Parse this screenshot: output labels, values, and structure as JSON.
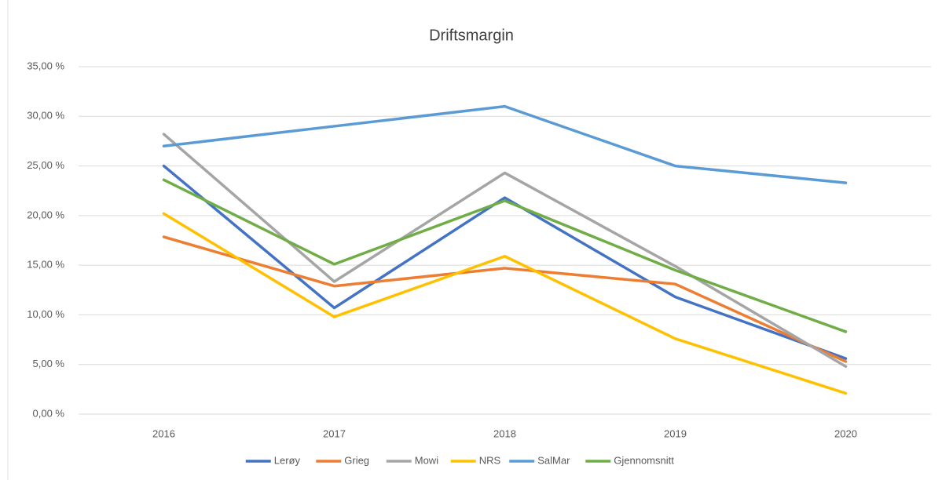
{
  "chart_data": {
    "type": "line",
    "title": "Driftsmargin",
    "categories": [
      "2016",
      "2017",
      "2018",
      "2019",
      "2020"
    ],
    "series": [
      {
        "name": "Lerøy",
        "color": "#4472c4",
        "values": [
          25.0,
          10.7,
          21.8,
          11.8,
          5.6
        ]
      },
      {
        "name": "Grieg",
        "color": "#ed7d31",
        "values": [
          17.85,
          12.9,
          14.7,
          13.1,
          5.3
        ]
      },
      {
        "name": "Mowi",
        "color": "#a5a5a5",
        "values": [
          28.2,
          13.35,
          24.3,
          14.9,
          4.8
        ]
      },
      {
        "name": "NRS",
        "color": "#ffc000",
        "values": [
          20.2,
          9.8,
          15.9,
          7.6,
          2.1
        ]
      },
      {
        "name": "SalMar",
        "color": "#5b9bd5",
        "values": [
          27.0,
          29.0,
          31.0,
          25.0,
          23.3
        ]
      },
      {
        "name": "Gjennomsnitt",
        "color": "#70ad47",
        "values": [
          23.6,
          15.1,
          21.5,
          14.5,
          8.3
        ]
      }
    ],
    "ylim": [
      0,
      35
    ],
    "yticks": [
      {
        "value": 0,
        "label": "0,00 %"
      },
      {
        "value": 5,
        "label": "5,00 %"
      },
      {
        "value": 10,
        "label": "10,00 %"
      },
      {
        "value": 15,
        "label": "15,00 %"
      },
      {
        "value": 20,
        "label": "20,00 %"
      },
      {
        "value": 25,
        "label": "25,00 %"
      },
      {
        "value": 30,
        "label": "30,00 %"
      },
      {
        "value": 35,
        "label": "35,00 %"
      }
    ],
    "grid": true,
    "legend": "bottom"
  }
}
